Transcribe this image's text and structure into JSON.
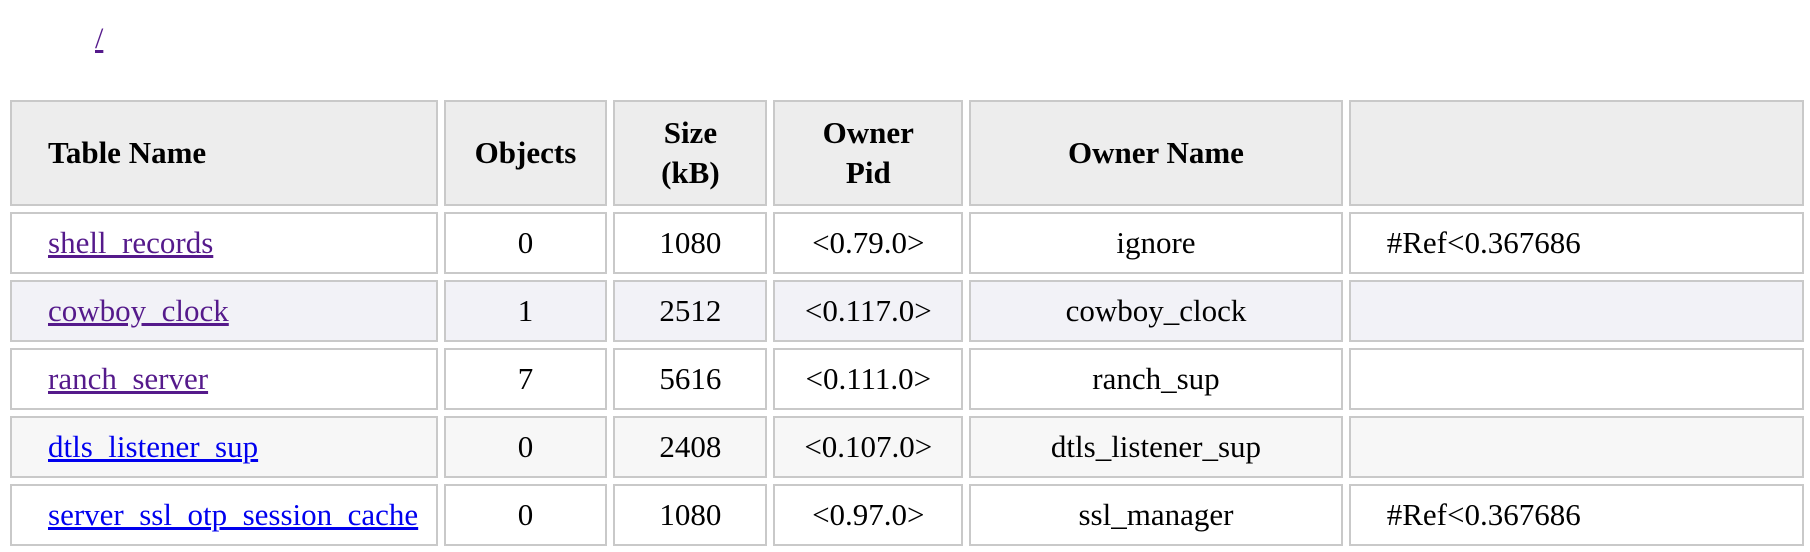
{
  "breadcrumb": {
    "label": "/"
  },
  "table": {
    "headers": {
      "name": "Table Name",
      "objects": "Objects",
      "size_line1": "Size",
      "size_line2": "(kB)",
      "pid_line1": "Owner",
      "pid_line2": "Pid",
      "owner_name": "Owner Name",
      "extra": ""
    },
    "rows": [
      {
        "name": "shell_records",
        "objects": "0",
        "size": "1080",
        "pid": "<0.79.0>",
        "owner": "ignore",
        "ref": "#Ref<0.367686",
        "visited": true
      },
      {
        "name": "cowboy_clock",
        "objects": "1",
        "size": "2512",
        "pid": "<0.117.0>",
        "owner": "cowboy_clock",
        "ref": "",
        "visited": true
      },
      {
        "name": "ranch_server",
        "objects": "7",
        "size": "5616",
        "pid": "<0.111.0>",
        "owner": "ranch_sup",
        "ref": "",
        "visited": true
      },
      {
        "name": "dtls_listener_sup",
        "objects": "0",
        "size": "2408",
        "pid": "<0.107.0>",
        "owner": "dtls_listener_sup",
        "ref": "",
        "visited": false
      },
      {
        "name": "server_ssl_otp_session_cache",
        "objects": "0",
        "size": "1080",
        "pid": "<0.97.0>",
        "owner": "ssl_manager",
        "ref": "#Ref<0.367686",
        "visited": false
      }
    ]
  },
  "colors": {
    "link_visited": "#551a8b",
    "link_unvisited": "#0000ee",
    "header_bg": "#ededed",
    "cell_border": "#c9c9c9"
  }
}
